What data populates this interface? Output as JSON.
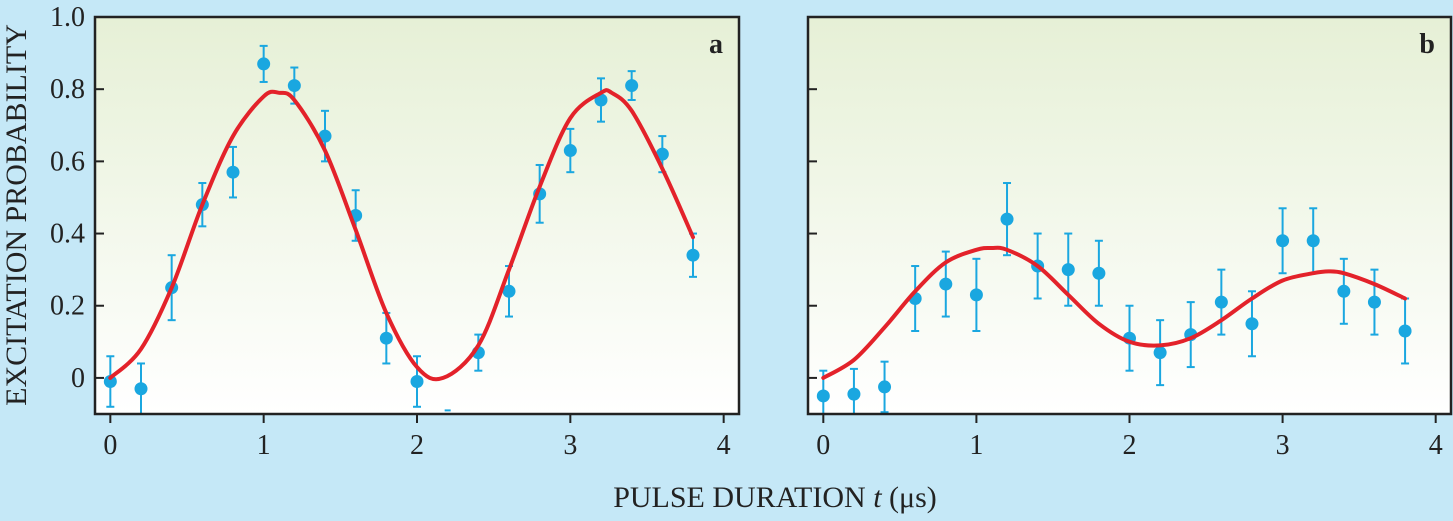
{
  "figure": {
    "ylabel": "EXCITATION PROBABILITY",
    "xlabel_pre": "PULSE DURATION ",
    "xlabel_var": "t",
    "xlabel_unit": " (μs)",
    "colors": {
      "background": "#c5e8f7",
      "panel_top": "#e6f0d6",
      "panel_bottom": "#ffffff",
      "fit": "#e3222a",
      "points": "#1aa7e0",
      "axis": "#222222"
    }
  },
  "chart_data": [
    {
      "type": "scatter",
      "panel_label": "a",
      "xlim": [
        -0.1,
        4.1
      ],
      "ylim": [
        -0.1,
        1.0
      ],
      "xticks": [
        0,
        1,
        2,
        3,
        4
      ],
      "xtick_labels": [
        "0",
        "1",
        "2",
        "3",
        "4"
      ],
      "yticks": [
        0,
        0.2,
        0.4,
        0.6,
        0.8,
        1.0
      ],
      "ytick_labels": [
        "0",
        "0.2",
        "0.4",
        "0.6",
        "0.8",
        "1.0"
      ],
      "points": [
        {
          "x": 0.0,
          "y": -0.01,
          "err": 0.07
        },
        {
          "x": 0.2,
          "y": -0.03,
          "err": 0.07
        },
        {
          "x": 0.4,
          "y": 0.25,
          "err": 0.09
        },
        {
          "x": 0.6,
          "y": 0.48,
          "err": 0.06
        },
        {
          "x": 0.8,
          "y": 0.57,
          "err": 0.07
        },
        {
          "x": 1.0,
          "y": 0.87,
          "err": 0.05
        },
        {
          "x": 1.2,
          "y": 0.81,
          "err": 0.05
        },
        {
          "x": 1.4,
          "y": 0.67,
          "err": 0.07
        },
        {
          "x": 1.6,
          "y": 0.45,
          "err": 0.07
        },
        {
          "x": 1.8,
          "y": 0.11,
          "err": 0.07
        },
        {
          "x": 2.0,
          "y": -0.01,
          "err": 0.07
        },
        {
          "x": 2.2,
          "y": -0.09,
          "err": 0.0
        },
        {
          "x": 2.4,
          "y": 0.07,
          "err": 0.05
        },
        {
          "x": 2.6,
          "y": 0.24,
          "err": 0.07
        },
        {
          "x": 2.8,
          "y": 0.51,
          "err": 0.08
        },
        {
          "x": 3.0,
          "y": 0.63,
          "err": 0.06
        },
        {
          "x": 3.2,
          "y": 0.77,
          "err": 0.06
        },
        {
          "x": 3.4,
          "y": 0.81,
          "err": 0.04
        },
        {
          "x": 3.6,
          "y": 0.62,
          "err": 0.05
        },
        {
          "x": 3.8,
          "y": 0.34,
          "err": 0.06
        }
      ],
      "fit": {
        "x": [
          0.0,
          0.2,
          0.4,
          0.6,
          0.8,
          1.0,
          1.1,
          1.2,
          1.4,
          1.6,
          1.8,
          2.0,
          2.17,
          2.4,
          2.6,
          2.8,
          3.0,
          3.2,
          3.27,
          3.4,
          3.6,
          3.8
        ],
        "y": [
          0.0,
          0.08,
          0.25,
          0.48,
          0.67,
          0.78,
          0.79,
          0.77,
          0.63,
          0.41,
          0.18,
          0.03,
          0.0,
          0.09,
          0.3,
          0.53,
          0.72,
          0.79,
          0.79,
          0.74,
          0.58,
          0.39
        ]
      }
    },
    {
      "type": "scatter",
      "panel_label": "b",
      "xlim": [
        -0.1,
        4.1
      ],
      "ylim": [
        -0.1,
        1.0
      ],
      "xticks": [
        0,
        1,
        2,
        3,
        4
      ],
      "xtick_labels": [
        "0",
        "1",
        "2",
        "3",
        "4"
      ],
      "yticks": [
        0,
        0.2,
        0.4,
        0.6,
        0.8,
        1.0
      ],
      "ytick_labels": [],
      "points": [
        {
          "x": 0.0,
          "y": -0.05,
          "err": 0.07
        },
        {
          "x": 0.2,
          "y": -0.045,
          "err": 0.07
        },
        {
          "x": 0.4,
          "y": -0.025,
          "err": 0.07
        },
        {
          "x": 0.6,
          "y": 0.22,
          "err": 0.09
        },
        {
          "x": 0.8,
          "y": 0.26,
          "err": 0.09
        },
        {
          "x": 1.0,
          "y": 0.23,
          "err": 0.1
        },
        {
          "x": 1.2,
          "y": 0.44,
          "err": 0.1
        },
        {
          "x": 1.4,
          "y": 0.31,
          "err": 0.09
        },
        {
          "x": 1.6,
          "y": 0.3,
          "err": 0.1
        },
        {
          "x": 1.8,
          "y": 0.29,
          "err": 0.09
        },
        {
          "x": 2.0,
          "y": 0.11,
          "err": 0.09
        },
        {
          "x": 2.2,
          "y": 0.07,
          "err": 0.09
        },
        {
          "x": 2.4,
          "y": 0.12,
          "err": 0.09
        },
        {
          "x": 2.6,
          "y": 0.21,
          "err": 0.09
        },
        {
          "x": 2.8,
          "y": 0.15,
          "err": 0.09
        },
        {
          "x": 3.0,
          "y": 0.38,
          "err": 0.09
        },
        {
          "x": 3.2,
          "y": 0.38,
          "err": 0.09
        },
        {
          "x": 3.4,
          "y": 0.24,
          "err": 0.09
        },
        {
          "x": 3.6,
          "y": 0.21,
          "err": 0.09
        },
        {
          "x": 3.8,
          "y": 0.13,
          "err": 0.09
        }
      ],
      "fit": {
        "x": [
          0.0,
          0.2,
          0.4,
          0.6,
          0.8,
          1.0,
          1.1,
          1.2,
          1.4,
          1.6,
          1.8,
          2.0,
          2.2,
          2.4,
          2.6,
          2.8,
          3.0,
          3.2,
          3.3,
          3.4,
          3.6,
          3.8
        ],
        "y": [
          0.0,
          0.05,
          0.14,
          0.24,
          0.32,
          0.355,
          0.36,
          0.355,
          0.31,
          0.23,
          0.15,
          0.1,
          0.09,
          0.11,
          0.16,
          0.22,
          0.27,
          0.29,
          0.295,
          0.29,
          0.26,
          0.22
        ]
      }
    }
  ]
}
